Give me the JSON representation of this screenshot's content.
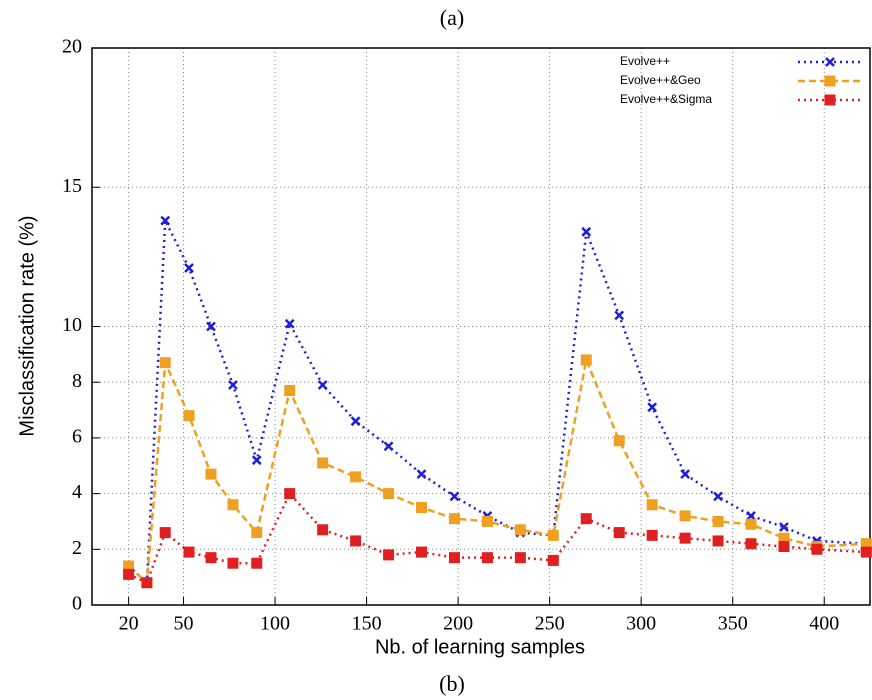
{
  "chart_data": {
    "type": "line",
    "title": "(a)",
    "caption": "(b)",
    "xlabel": "Nb. of learning samples",
    "ylabel": "Misclassification rate (%)",
    "x": [
      20,
      30,
      40,
      53,
      65,
      77,
      90,
      108,
      126,
      144,
      162,
      180,
      198,
      216,
      234,
      252,
      270,
      288,
      306,
      324,
      342,
      360,
      378,
      396,
      423
    ],
    "series": [
      {
        "name": "Evolve++",
        "color": "#1f1fd8",
        "marker": "cross",
        "dash": "2,4",
        "values": [
          1.4,
          0.8,
          13.8,
          12.1,
          10.0,
          7.9,
          5.2,
          10.1,
          7.9,
          6.6,
          5.7,
          4.7,
          3.9,
          3.2,
          2.6,
          2.5,
          13.4,
          10.4,
          7.1,
          4.7,
          3.9,
          3.2,
          2.8,
          2.3,
          2.2
        ]
      },
      {
        "name": "Evolve++&Geo",
        "color": "#f0a020",
        "marker": "square",
        "dash": "7,4",
        "values": [
          1.4,
          0.8,
          8.7,
          6.8,
          4.7,
          3.6,
          2.6,
          7.7,
          5.1,
          4.6,
          4.0,
          3.5,
          3.1,
          3.0,
          2.7,
          2.5,
          8.8,
          5.9,
          3.6,
          3.2,
          3.0,
          2.9,
          2.4,
          2.1,
          2.2
        ]
      },
      {
        "name": "Evolve++&Sigma",
        "color": "#e02020",
        "marker": "square",
        "dash": "2,4",
        "values": [
          1.1,
          0.8,
          2.6,
          1.9,
          1.7,
          1.5,
          1.5,
          4.0,
          2.7,
          2.3,
          1.8,
          1.9,
          1.7,
          1.7,
          1.7,
          1.6,
          3.1,
          2.6,
          2.5,
          2.4,
          2.3,
          2.2,
          2.1,
          2.0,
          1.9
        ]
      }
    ],
    "xlim": [
      0,
      425
    ],
    "xticks": [
      20,
      50,
      100,
      150,
      200,
      250,
      300,
      350,
      400
    ],
    "ylim": [
      0,
      20
    ],
    "yticks": [
      0,
      2,
      4,
      6,
      8,
      10,
      15,
      20
    ],
    "grid": true,
    "legend": "top-right"
  }
}
